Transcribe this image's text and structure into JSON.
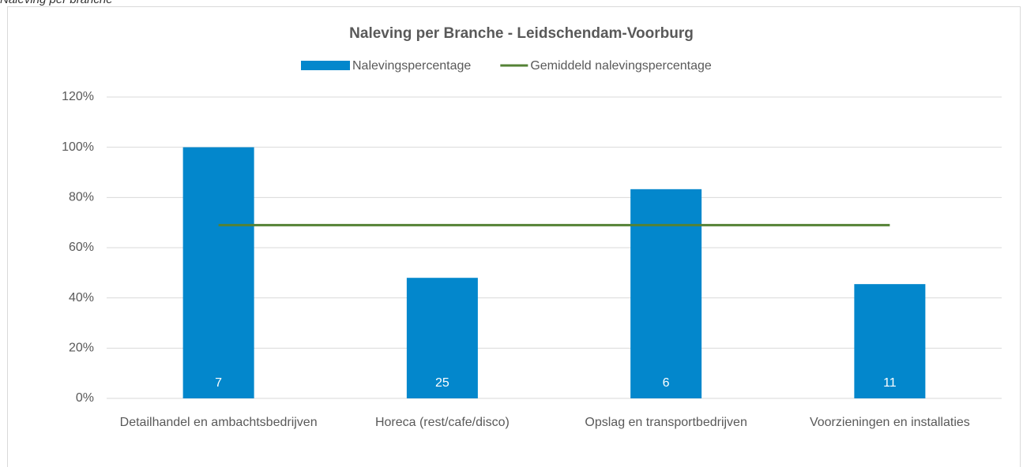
{
  "chart_data": {
    "type": "bar",
    "caption": "Naleving per branche",
    "title": "Naleving per Branche - Leidschendam-Voorburg",
    "categories": [
      "Detailhandel en ambachtsbedrijven",
      "Horeca (rest/cafe/disco)",
      "Opslag en transportbedrijven",
      "Voorzieningen en installaties"
    ],
    "series": [
      {
        "name": "Nalevingspercentage",
        "type": "bar",
        "color": "#0387cc",
        "values": [
          100,
          48,
          83.3,
          45.5
        ],
        "counts": [
          7,
          25,
          6,
          11
        ]
      },
      {
        "name": "Gemiddeld nalevingspercentage",
        "type": "line",
        "color": "#548235",
        "values": [
          69,
          69,
          69,
          69
        ]
      }
    ],
    "ylim": [
      0,
      120
    ],
    "yticks": [
      {
        "value": 0,
        "label": "0%"
      },
      {
        "value": 20,
        "label": "20%"
      },
      {
        "value": 40,
        "label": "40%"
      },
      {
        "value": 60,
        "label": "60%"
      },
      {
        "value": 80,
        "label": "80%"
      },
      {
        "value": 100,
        "label": "100%"
      },
      {
        "value": 120,
        "label": "120%"
      }
    ],
    "grid": true
  }
}
